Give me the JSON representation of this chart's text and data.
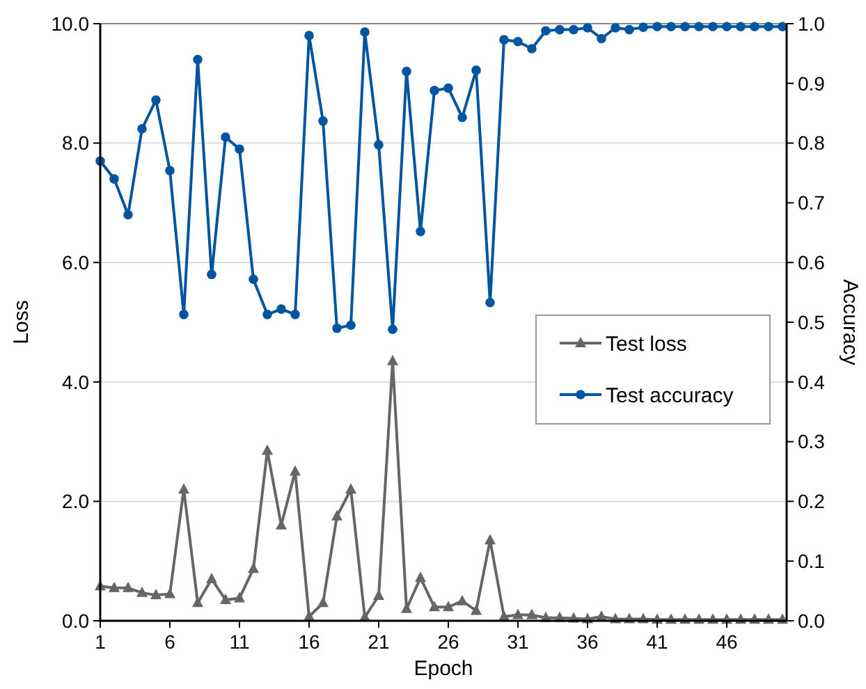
{
  "chart_data": {
    "type": "line",
    "xlabel": "Epoch",
    "ylabel": "Loss",
    "y2label": "Accuracy",
    "x": [
      1,
      2,
      3,
      4,
      5,
      6,
      7,
      8,
      9,
      10,
      11,
      12,
      13,
      14,
      15,
      16,
      17,
      18,
      19,
      20,
      21,
      22,
      23,
      24,
      25,
      26,
      27,
      28,
      29,
      30,
      31,
      32,
      33,
      34,
      35,
      36,
      37,
      38,
      39,
      40,
      41,
      42,
      43,
      44,
      45,
      46,
      47,
      48,
      49,
      50
    ],
    "xlim": [
      1,
      50.3
    ],
    "xticks": [
      1,
      6,
      11,
      16,
      21,
      26,
      31,
      36,
      41,
      46
    ],
    "ylim": [
      0,
      10
    ],
    "yticks": [
      {
        "value": 0,
        "label": "0.0"
      },
      {
        "value": 2,
        "label": "2.0"
      },
      {
        "value": 4,
        "label": "4.0"
      },
      {
        "value": 6,
        "label": "6.0"
      },
      {
        "value": 8,
        "label": "8.0"
      },
      {
        "value": 10,
        "label": "10.0"
      }
    ],
    "y2lim": [
      0,
      1
    ],
    "y2ticks": [
      {
        "value": 0,
        "label": "0.0"
      },
      {
        "value": 0.1,
        "label": "0.1"
      },
      {
        "value": 0.2,
        "label": "0.2"
      },
      {
        "value": 0.3,
        "label": "0.3"
      },
      {
        "value": 0.4,
        "label": "0.4"
      },
      {
        "value": 0.5,
        "label": "0.5"
      },
      {
        "value": 0.6,
        "label": "0.6"
      },
      {
        "value": 0.7,
        "label": "0.7"
      },
      {
        "value": 0.8,
        "label": "0.8"
      },
      {
        "value": 0.9,
        "label": "0.9"
      },
      {
        "value": 1,
        "label": "1.0"
      }
    ],
    "grid": "y",
    "legend": "right",
    "line_style": "solid",
    "series": [
      {
        "name": "Test loss",
        "color": "#666666",
        "marker": "triangle",
        "values": [
          0.58,
          0.55,
          0.55,
          0.47,
          0.43,
          0.45,
          2.2,
          0.3,
          0.7,
          0.35,
          0.38,
          0.87,
          2.85,
          1.6,
          2.5,
          0.07,
          0.3,
          1.75,
          2.2,
          0.06,
          0.42,
          4.35,
          0.2,
          0.72,
          0.23,
          0.23,
          0.33,
          0.17,
          1.35,
          0.07,
          0.1,
          0.1,
          0.05,
          0.05,
          0.04,
          0.03,
          0.07,
          0.03,
          0.03,
          0.03,
          0.02,
          0.02,
          0.02,
          0.02,
          0.02,
          0.02,
          0.02,
          0.02,
          0.02,
          0.02
        ]
      },
      {
        "name": "Test accuracy",
        "color": "#0055a0",
        "marker": "circle",
        "axis": "y2",
        "values": [
          0.77,
          0.74,
          0.68,
          0.824,
          0.872,
          0.754,
          0.513,
          0.94,
          0.58,
          0.81,
          0.79,
          0.572,
          0.513,
          0.522,
          0.513,
          0.98,
          0.837,
          0.49,
          0.495,
          0.986,
          0.797,
          0.488,
          0.92,
          0.652,
          0.888,
          0.892,
          0.843,
          0.922,
          0.533,
          0.973,
          0.97,
          0.958,
          0.988,
          0.99,
          0.99,
          0.993,
          0.975,
          0.993,
          0.99,
          0.994,
          0.995,
          0.995,
          0.995,
          0.995,
          0.995,
          0.995,
          0.995,
          0.995,
          0.995,
          0.995
        ]
      }
    ]
  }
}
